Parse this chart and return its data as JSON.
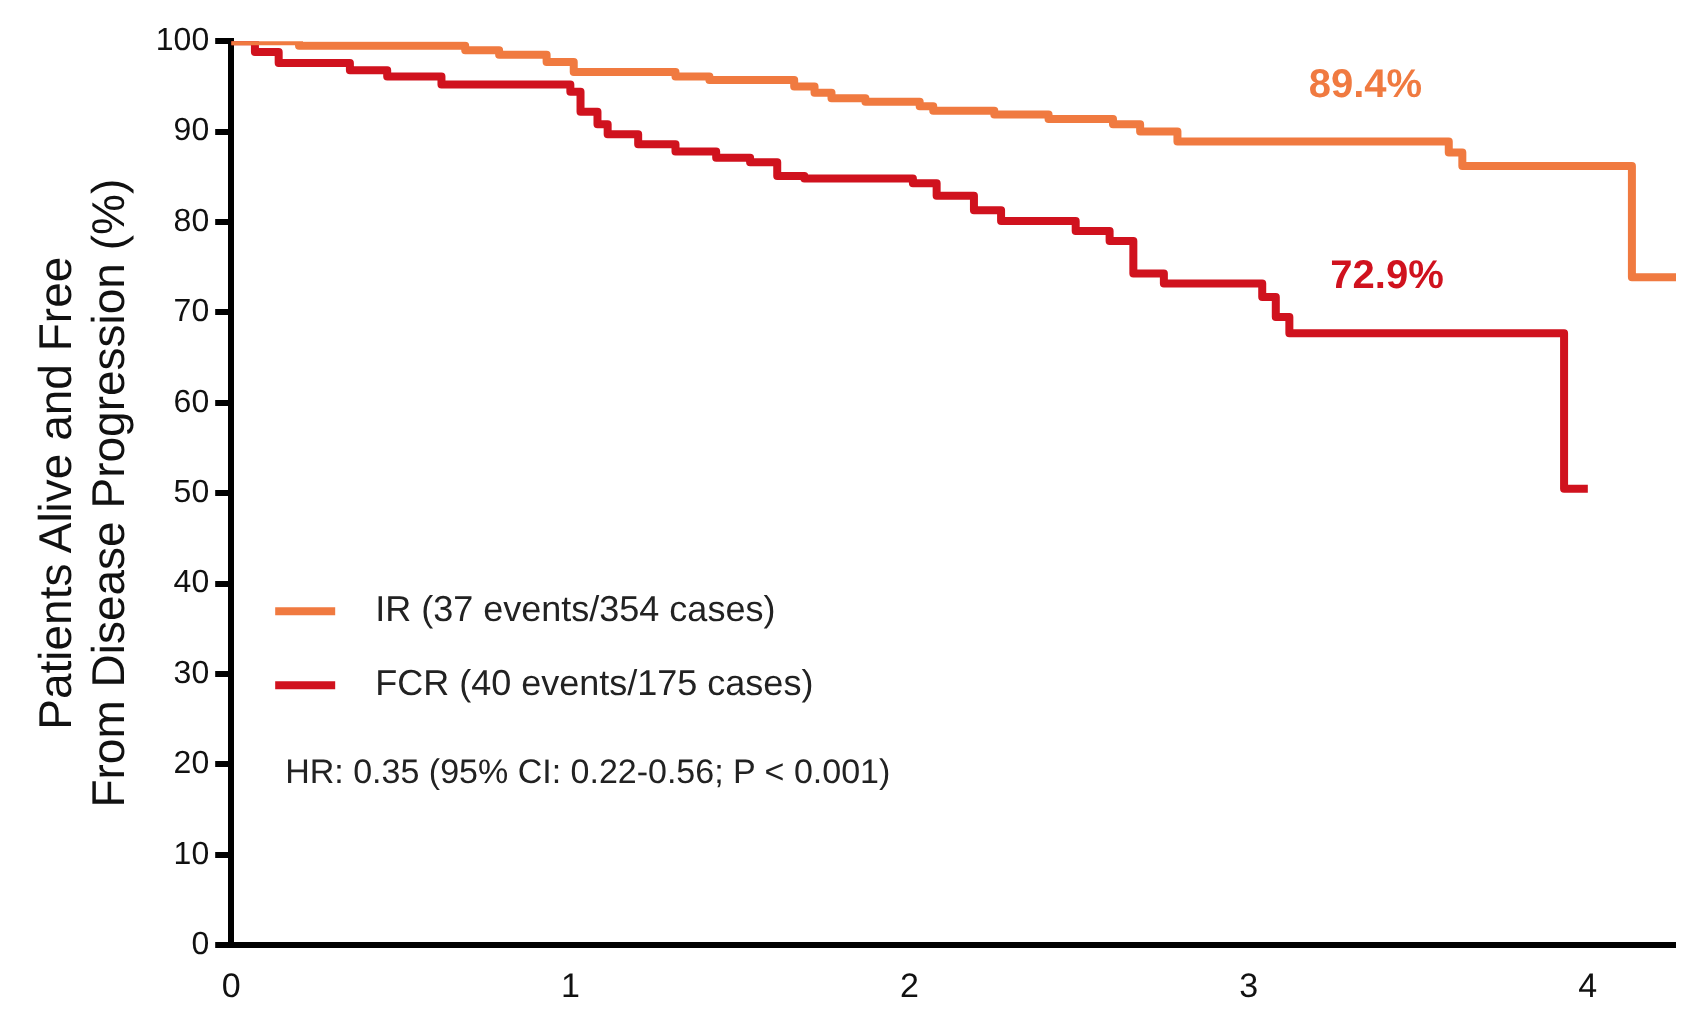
{
  "chart_data": {
    "type": "step",
    "ylabel": "Patients Alive and Free\nFrom Disease Progression (%)",
    "xlim": [
      0,
      4.26
    ],
    "xticks": [
      0,
      1,
      2,
      3,
      4
    ],
    "ylim": [
      0,
      100
    ],
    "yticks": [
      0,
      10,
      20,
      30,
      40,
      50,
      60,
      70,
      80,
      90,
      100
    ],
    "grid": false,
    "legend": "bottom left",
    "marker": "none",
    "line_style": "solid",
    "series": [
      {
        "name": "IR (37 events/354 cases)",
        "color": "#f07a40",
        "x": [
          0,
          0.2,
          0.69,
          0.79,
          0.93,
          1.01,
          1.31,
          1.41,
          1.66,
          1.72,
          1.77,
          1.87,
          2.03,
          2.07,
          2.25,
          2.41,
          2.6,
          2.68,
          2.79,
          3.59,
          3.63,
          4.13,
          4.26
        ],
        "values": [
          100,
          99.5,
          99,
          98.5,
          97.7,
          96.6,
          96.1,
          95.7,
          95,
          94.3,
          93.7,
          93.3,
          92.8,
          92.3,
          91.9,
          91.4,
          90.8,
          90,
          88.9,
          87.7,
          86.2,
          73.9,
          73.9
        ]
      },
      {
        "name": "FCR (40 events/175 cases)",
        "color": "#d0121e",
        "x": [
          0,
          0.07,
          0.14,
          0.35,
          0.46,
          0.62,
          1,
          1.03,
          1.08,
          1.11,
          1.2,
          1.31,
          1.43,
          1.53,
          1.61,
          1.69,
          2.01,
          2.08,
          2.19,
          2.27,
          2.49,
          2.59,
          2.66,
          2.75,
          3.04,
          3.08,
          3.12,
          3.93,
          4
        ],
        "values": [
          100,
          98.8,
          97.6,
          96.8,
          96.1,
          95.2,
          94.4,
          92.2,
          90.8,
          89.7,
          88.6,
          87.8,
          87.1,
          86.6,
          85.1,
          84.8,
          84.3,
          82.9,
          81.3,
          80.1,
          79,
          77.9,
          74.3,
          73.2,
          71.7,
          69.5,
          67.7,
          50.5,
          50.5
        ]
      }
    ],
    "annotations": [
      "89.4%",
      "72.9%",
      "HR: 0.35 (95% CI: 0.22-0.56; P < 0.001)"
    ]
  }
}
